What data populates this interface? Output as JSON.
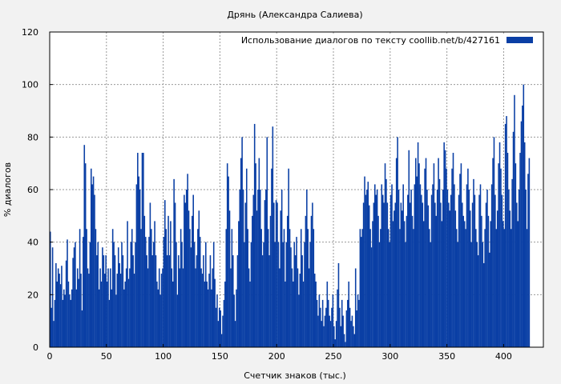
{
  "chart_data": {
    "type": "bar",
    "title": "Дрянь (Александра Салиева)",
    "xlabel": "Счетчик знаков (тыс.)",
    "ylabel": "% диалогов",
    "xlim": [
      0,
      435
    ],
    "ylim": [
      0,
      120
    ],
    "xticks": [
      0,
      50,
      100,
      150,
      200,
      250,
      300,
      350,
      400
    ],
    "yticks": [
      0,
      20,
      40,
      60,
      80,
      100,
      120
    ],
    "grid": true,
    "legend_position": "top-right",
    "series": [
      {
        "name": "Использование диалогов по тексту  coollib.net/b/427161",
        "color": "#0a3fa5",
        "bin_width": 1,
        "x_start": 0,
        "values": [
          44,
          15,
          38,
          10,
          18,
          32,
          25,
          30,
          28,
          24,
          31,
          18,
          22,
          20,
          33,
          41,
          25,
          20,
          18,
          22,
          34,
          38,
          40,
          22,
          30,
          26,
          45,
          28,
          14,
          42,
          77,
          70,
          45,
          30,
          28,
          40,
          68,
          62,
          65,
          58,
          45,
          35,
          40,
          22,
          30,
          25,
          38,
          35,
          28,
          35,
          25,
          30,
          18,
          30,
          22,
          45,
          40,
          35,
          20,
          28,
          38,
          32,
          28,
          40,
          35,
          22,
          25,
          30,
          48,
          26,
          30,
          40,
          45,
          35,
          28,
          40,
          62,
          74,
          65,
          60,
          45,
          74,
          74,
          50,
          42,
          35,
          30,
          42,
          55,
          45,
          35,
          40,
          48,
          35,
          25,
          22,
          30,
          20,
          28,
          30,
          42,
          56,
          45,
          35,
          50,
          35,
          48,
          30,
          25,
          64,
          55,
          40,
          20,
          35,
          30,
          45,
          40,
          30,
          58,
          55,
          60,
          66,
          52,
          45,
          38,
          50,
          58,
          40,
          30,
          35,
          45,
          52,
          42,
          30,
          28,
          35,
          25,
          40,
          25,
          22,
          28,
          35,
          22,
          30,
          40,
          26,
          15,
          20,
          10,
          15,
          14,
          5,
          12,
          18,
          25,
          45,
          70,
          65,
          52,
          30,
          45,
          35,
          20,
          10,
          22,
          35,
          48,
          60,
          72,
          80,
          60,
          40,
          55,
          68,
          45,
          30,
          25,
          40,
          50,
          58,
          85,
          70,
          52,
          60,
          72,
          60,
          45,
          35,
          40,
          56,
          60,
          80,
          45,
          35,
          50,
          68,
          84,
          55,
          40,
          56,
          55,
          40,
          30,
          52,
          60,
          40,
          45,
          25,
          40,
          50,
          68,
          45,
          38,
          30,
          25,
          40,
          35,
          42,
          30,
          20,
          28,
          45,
          35,
          25,
          40,
          50,
          60,
          45,
          30,
          40,
          50,
          55,
          45,
          28,
          25,
          18,
          12,
          20,
          15,
          10,
          18,
          8,
          12,
          15,
          25,
          18,
          12,
          10,
          15,
          20,
          8,
          3,
          10,
          22,
          32,
          15,
          8,
          18,
          12,
          5,
          2,
          14,
          18,
          25,
          15,
          10,
          12,
          8,
          5,
          30,
          14,
          20,
          18,
          45,
          42,
          45,
          55,
          65,
          58,
          60,
          63,
          54,
          45,
          38,
          48,
          55,
          62,
          58,
          60,
          50,
          40,
          45,
          62,
          58,
          55,
          70,
          64,
          55,
          45,
          40,
          58,
          62,
          48,
          52,
          55,
          72,
          80,
          60,
          45,
          55,
          52,
          62,
          48,
          40,
          50,
          58,
          75,
          55,
          60,
          50,
          45,
          62,
          72,
          65,
          78,
          70,
          62,
          58,
          55,
          48,
          68,
          72,
          60,
          54,
          45,
          40,
          58,
          62,
          70,
          55,
          50,
          60,
          72,
          64,
          55,
          48,
          60,
          78,
          75,
          68,
          60,
          55,
          52,
          58,
          68,
          74,
          62,
          52,
          45,
          40,
          58,
          66,
          70,
          55,
          50,
          48,
          45,
          62,
          68,
          60,
          52,
          40,
          55,
          64,
          58,
          45,
          40,
          35,
          58,
          62,
          50,
          40,
          32,
          45,
          55,
          60,
          50,
          36,
          48,
          62,
          72,
          80,
          58,
          45,
          52,
          70,
          78,
          68,
          58,
          48,
          45,
          85,
          88,
          74,
          60,
          52,
          45,
          64,
          82,
          96,
          70,
          55,
          48,
          60,
          74,
          86,
          92,
          100,
          78,
          60,
          45,
          66,
          72
        ]
      }
    ]
  }
}
